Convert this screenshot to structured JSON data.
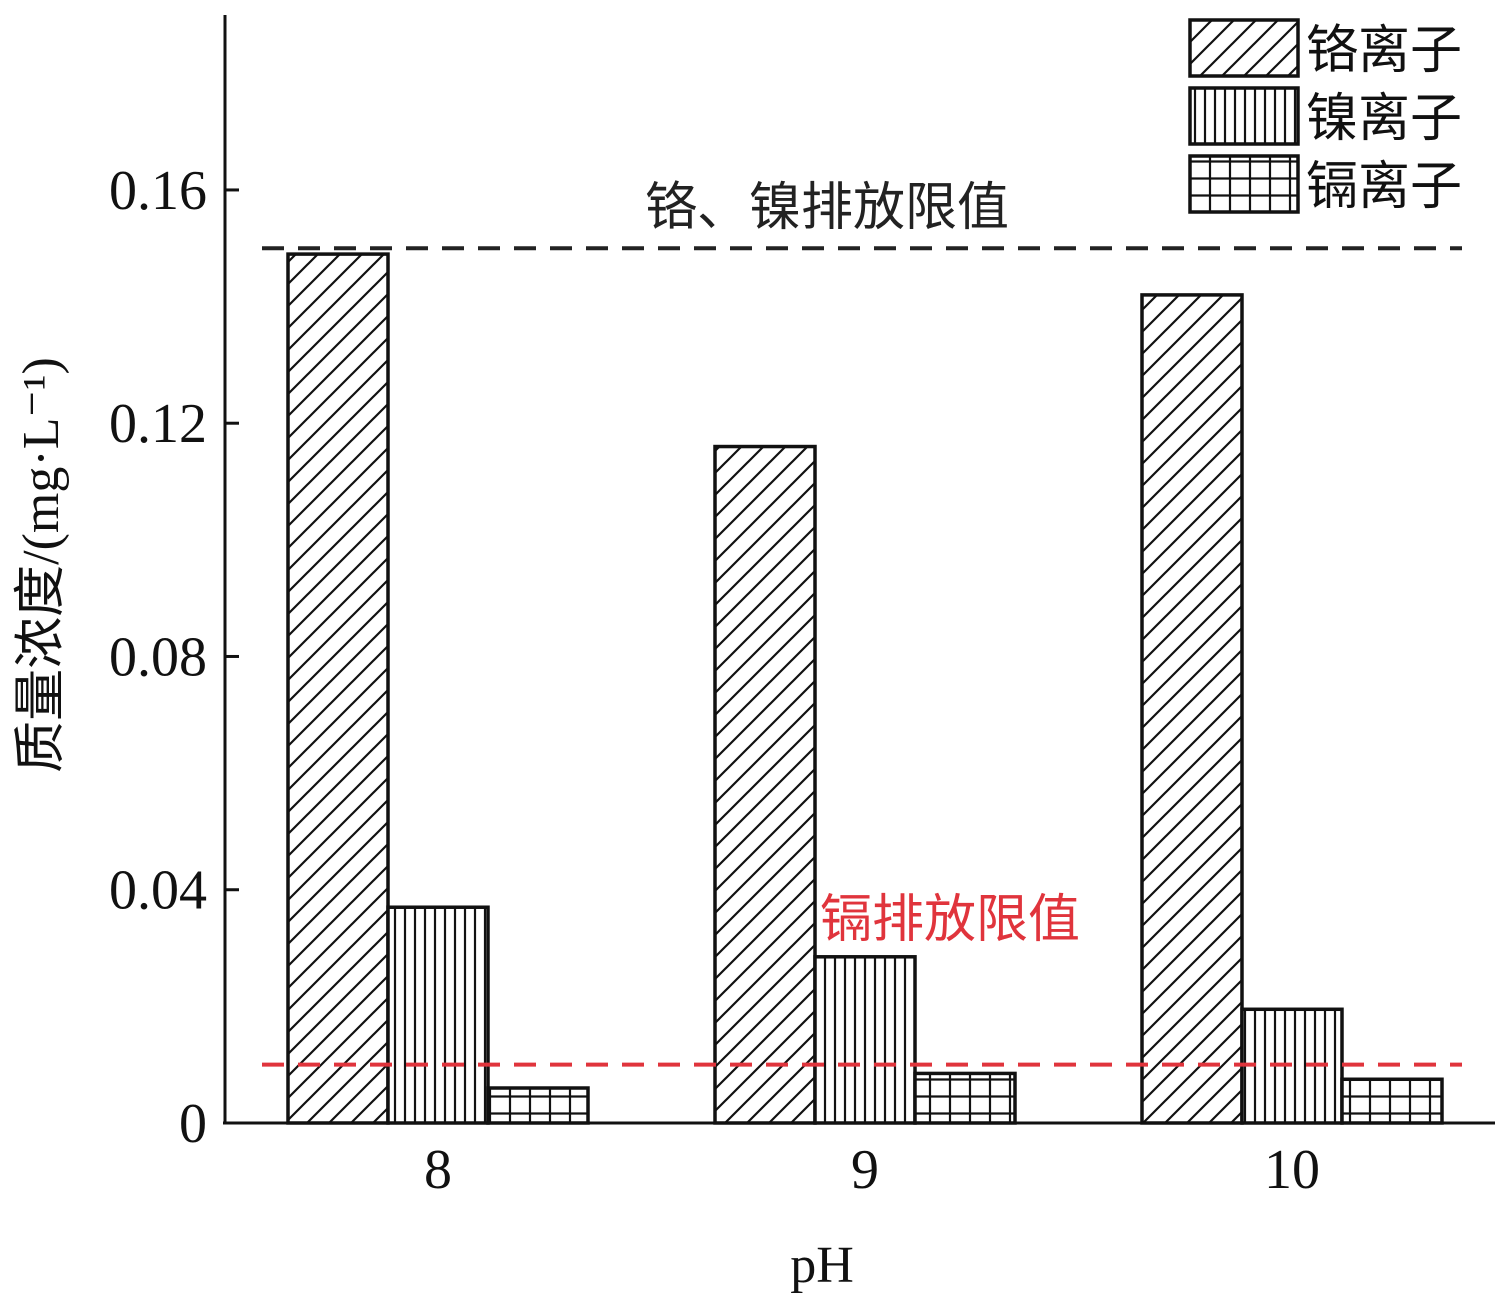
{
  "chart_data": {
    "type": "bar",
    "xlabel": "pH",
    "ylabel": "质量浓度/(mg·L⁻¹)",
    "ylim": [
      0,
      0.19
    ],
    "yticks": [
      0,
      0.04,
      0.08,
      0.12,
      0.16
    ],
    "ytick_labels": [
      "0",
      "0.04",
      "0.08",
      "0.12",
      "0.16"
    ],
    "categories": [
      "8",
      "9",
      "10"
    ],
    "series": [
      {
        "name": "铬离子",
        "pattern": "diagonal",
        "values": [
          0.149,
          0.116,
          0.142
        ]
      },
      {
        "name": "镍离子",
        "pattern": "vertical",
        "values": [
          0.037,
          0.0285,
          0.0195
        ]
      },
      {
        "name": "镉离子",
        "pattern": "grid",
        "values": [
          0.006,
          0.0085,
          0.0075
        ]
      }
    ],
    "reference_lines": [
      {
        "label": "铬、镍排放限值",
        "value": 0.15,
        "color": "#222222"
      },
      {
        "label": "镉排放限值",
        "value": 0.01,
        "color": "#e0343c"
      }
    ],
    "legend_position": "top-right",
    "grid": false
  }
}
